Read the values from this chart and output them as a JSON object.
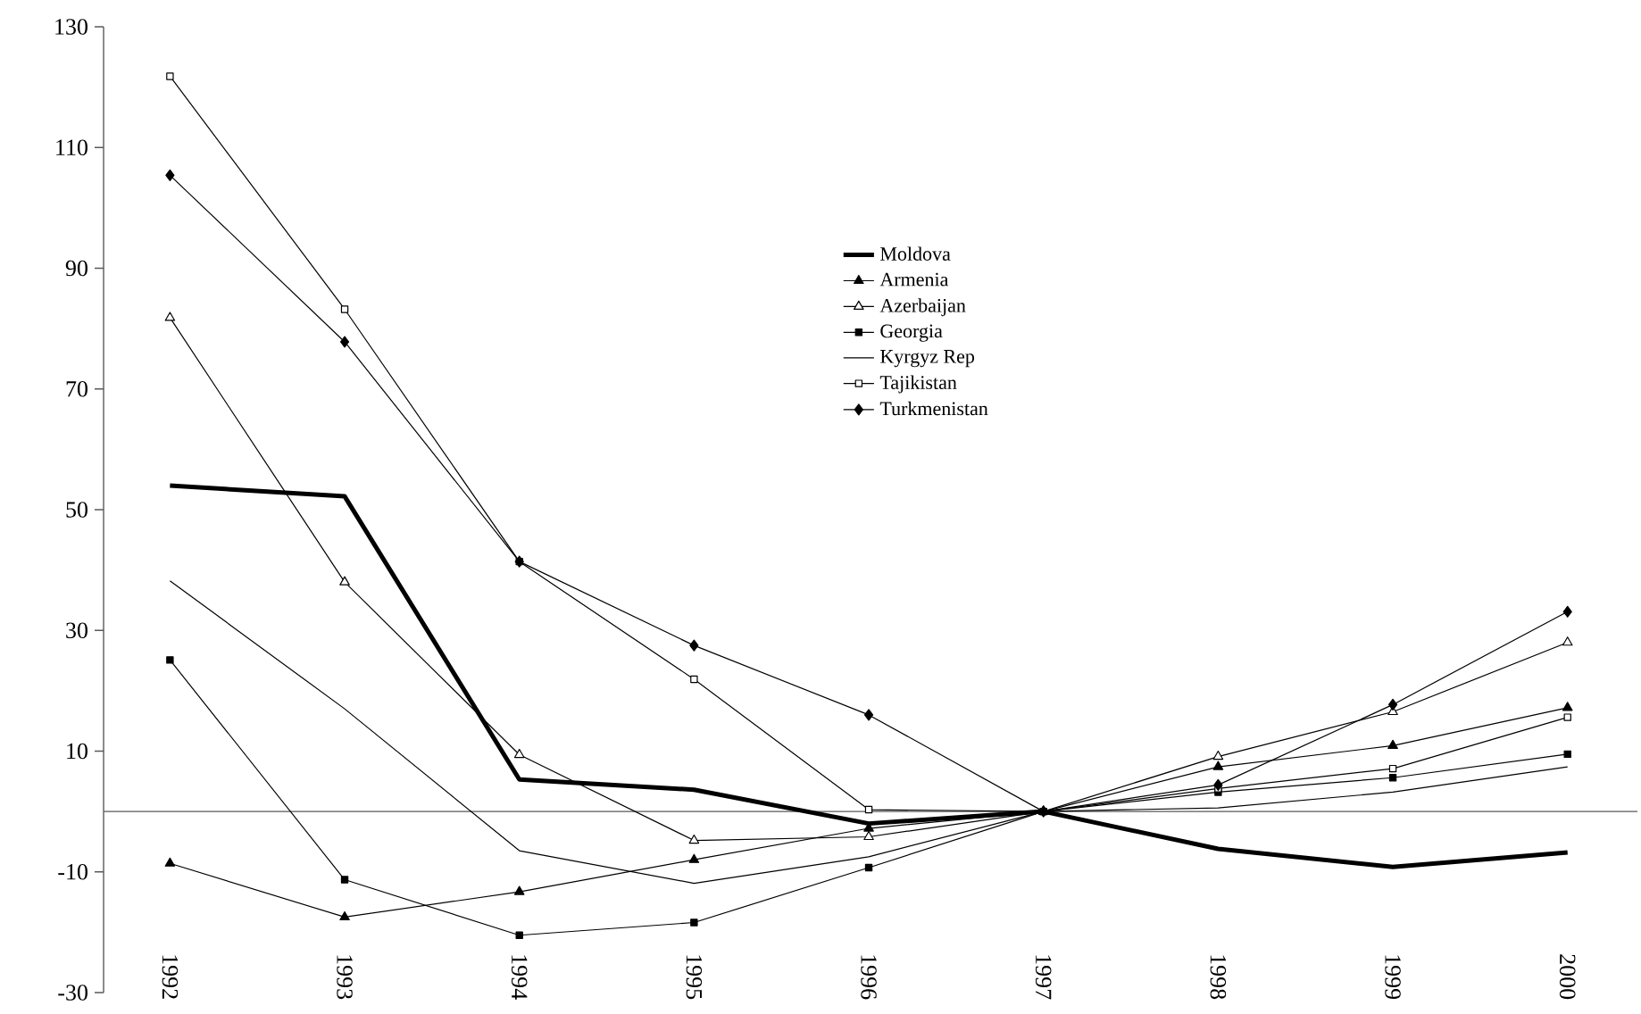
{
  "chart_data": {
    "type": "line",
    "categories": [
      "1992",
      "1993",
      "1994",
      "1995",
      "1996",
      "1997",
      "1998",
      "1999",
      "2000"
    ],
    "ylim": [
      -30,
      130
    ],
    "yticks": [
      -30,
      -10,
      10,
      30,
      50,
      70,
      90,
      110,
      130
    ],
    "legend": "top",
    "grid": false,
    "series": [
      {
        "name": "Moldova",
        "color": "#000000",
        "marker": "none",
        "values": [
          54,
          52.2,
          5.3,
          3.6,
          -2,
          0,
          -6.2,
          -9.2,
          -6.8
        ]
      },
      {
        "name": "Armenia",
        "color": "#000000",
        "marker": "triangle",
        "values": [
          -8.6,
          -17.5,
          -13.3,
          -8,
          -2.8,
          0,
          7.4,
          10.9,
          17.2
        ]
      },
      {
        "name": "Azerbaijan",
        "color": "#000000",
        "marker": "triangle",
        "values": [
          81.8,
          38,
          9.4,
          -4.8,
          -4.2,
          0,
          9.1,
          16.5,
          28
        ]
      },
      {
        "name": "Georgia",
        "color": "#000000",
        "marker": "square",
        "values": [
          25.1,
          -11.3,
          -20.5,
          -18.4,
          -9.3,
          0,
          3.2,
          5.6,
          9.5
        ]
      },
      {
        "name": "Kyrgyz Rep",
        "color": "#000000",
        "marker": "none",
        "values": [
          38.2,
          17,
          -6.5,
          -11.9,
          -7.5,
          0,
          0.6,
          3.2,
          7.4
        ]
      },
      {
        "name": "Tajikistan",
        "color": "#000000",
        "marker": "square",
        "values": [
          121.8,
          83.2,
          41.4,
          21.9,
          0.3,
          0,
          3.8,
          7.1,
          15.6
        ]
      },
      {
        "name": "Turkmenistan",
        "color": "#000000",
        "marker": "diamond",
        "values": [
          105.4,
          77.8,
          41.4,
          27.5,
          16,
          0,
          4.4,
          17.7,
          33.1
        ]
      }
    ]
  }
}
